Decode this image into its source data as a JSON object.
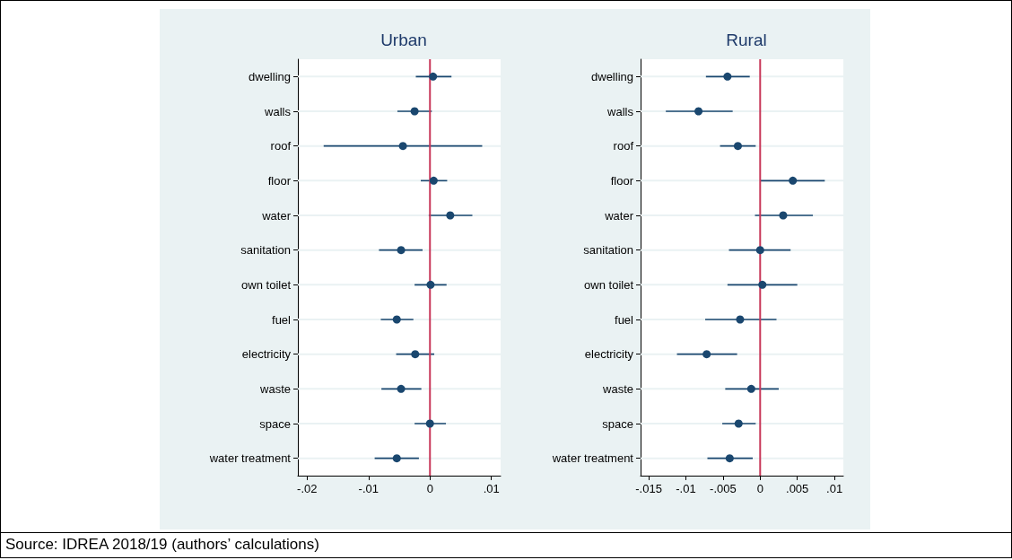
{
  "chart_data": [
    {
      "type": "scatter",
      "title": "Urban",
      "orientation": "horizontal",
      "marker": "circle",
      "grid": "y",
      "categories": [
        "dwelling",
        "walls",
        "roof",
        "floor",
        "water",
        "sanitation",
        "own toilet",
        "fuel",
        "electricity",
        "waste",
        "space",
        "water treatment"
      ],
      "series": [
        {
          "color": "#1a476f",
          "values": [
            0.0005,
            -0.0025,
            -0.0044,
            0.0006,
            0.0033,
            -0.0047,
            0.0001,
            -0.0054,
            -0.0024,
            -0.0047,
            0.0,
            -0.0054
          ],
          "errors": [
            [
              -0.0023,
              0.0035
            ],
            [
              -0.0053,
              0.0003
            ],
            [
              -0.0173,
              0.0085
            ],
            [
              -0.0015,
              0.0028
            ],
            [
              -0.0002,
              0.0069
            ],
            [
              -0.0083,
              -0.0012
            ],
            [
              -0.0025,
              0.0027
            ],
            [
              -0.008,
              -0.0027
            ],
            [
              -0.0055,
              0.0007
            ],
            [
              -0.0079,
              -0.0014
            ],
            [
              -0.0025,
              0.0026
            ],
            [
              -0.009,
              -0.0018
            ]
          ]
        }
      ],
      "xlim": [
        -0.0215,
        0.0115
      ],
      "xticks": [
        {
          "value": -0.02,
          "label": "-.02"
        },
        {
          "value": -0.01,
          "label": "-.01"
        },
        0,
        {
          "value": 0.01,
          "label": ".01"
        }
      ],
      "ref_lines": [
        {
          "axis": "x",
          "value": 0,
          "color": "#c8385a"
        }
      ],
      "annotations": [
        "Source: IDREA 2018/19 (authors’ calculations)"
      ]
    },
    {
      "type": "scatter",
      "title": "Rural",
      "orientation": "horizontal",
      "marker": "circle",
      "grid": "y",
      "categories": [
        "dwelling",
        "walls",
        "roof",
        "floor",
        "water",
        "sanitation",
        "own toilet",
        "fuel",
        "electricity",
        "waste",
        "space",
        "water treatment"
      ],
      "series": [
        {
          "color": "#1a476f",
          "values": [
            -0.0044,
            -0.0083,
            -0.003,
            0.0044,
            0.0031,
            0.0,
            0.0003,
            -0.0027,
            -0.0072,
            -0.0012,
            -0.0029,
            -0.0041
          ],
          "errors": [
            [
              -0.0073,
              -0.0014
            ],
            [
              -0.0127,
              -0.0037
            ],
            [
              -0.0054,
              -0.0006
            ],
            [
              0.0,
              0.0087
            ],
            [
              -0.0007,
              0.0071
            ],
            [
              -0.0042,
              0.0041
            ],
            [
              -0.0044,
              0.005
            ],
            [
              -0.0074,
              0.0022
            ],
            [
              -0.0112,
              -0.0031
            ],
            [
              -0.0047,
              0.0025
            ],
            [
              -0.0051,
              -0.0006
            ],
            [
              -0.0071,
              -0.001
            ]
          ]
        }
      ],
      "xlim": [
        -0.0161,
        0.0112
      ],
      "xticks": [
        {
          "value": -0.015,
          "label": "-.015"
        },
        {
          "value": -0.01,
          "label": "-.01"
        },
        {
          "value": -0.005,
          "label": "-.005"
        },
        0,
        {
          "value": 0.005,
          "label": ".005"
        },
        {
          "value": 0.01,
          "label": ".01"
        }
      ],
      "ref_lines": [
        {
          "axis": "x",
          "value": 0,
          "color": "#c8385a"
        }
      ]
    }
  ]
}
